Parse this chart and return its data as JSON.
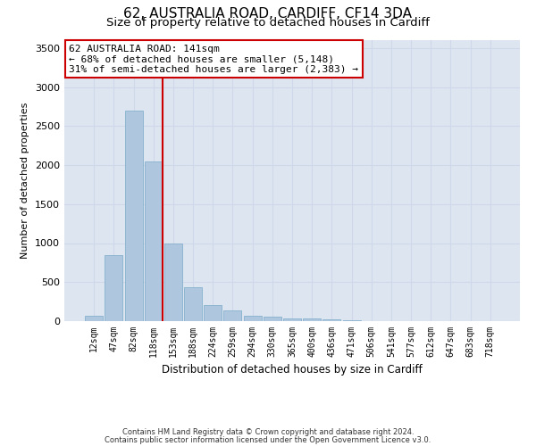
{
  "title1": "62, AUSTRALIA ROAD, CARDIFF, CF14 3DA",
  "title2": "Size of property relative to detached houses in Cardiff",
  "xlabel": "Distribution of detached houses by size in Cardiff",
  "ylabel": "Number of detached properties",
  "categories": [
    "12sqm",
    "47sqm",
    "82sqm",
    "118sqm",
    "153sqm",
    "188sqm",
    "224sqm",
    "259sqm",
    "294sqm",
    "330sqm",
    "365sqm",
    "400sqm",
    "436sqm",
    "471sqm",
    "506sqm",
    "541sqm",
    "577sqm",
    "612sqm",
    "647sqm",
    "683sqm",
    "718sqm"
  ],
  "values": [
    65,
    850,
    2700,
    2050,
    1000,
    440,
    205,
    135,
    70,
    55,
    40,
    30,
    20,
    10,
    5,
    0,
    0,
    0,
    0,
    0,
    0
  ],
  "bar_color": "#aec6de",
  "bar_edge_color": "#7aaac8",
  "vline_color": "#cc0000",
  "vline_pos": 3.45,
  "annotation_text": "62 AUSTRALIA ROAD: 141sqm\n← 68% of detached houses are smaller (5,148)\n31% of semi-detached houses are larger (2,383) →",
  "annotation_box_facecolor": "#ffffff",
  "annotation_box_edgecolor": "#cc0000",
  "ylim": [
    0,
    3600
  ],
  "yticks": [
    0,
    500,
    1000,
    1500,
    2000,
    2500,
    3000,
    3500
  ],
  "grid_color": "#ced8ea",
  "bg_color": "#dde5f0",
  "footer1": "Contains HM Land Registry data © Crown copyright and database right 2024.",
  "footer2": "Contains public sector information licensed under the Open Government Licence v3.0.",
  "title1_fontsize": 11,
  "title2_fontsize": 9.5,
  "annotation_fontsize": 8,
  "ylabel_fontsize": 8,
  "xlabel_fontsize": 8.5,
  "tick_fontsize": 7,
  "footer_fontsize": 6
}
